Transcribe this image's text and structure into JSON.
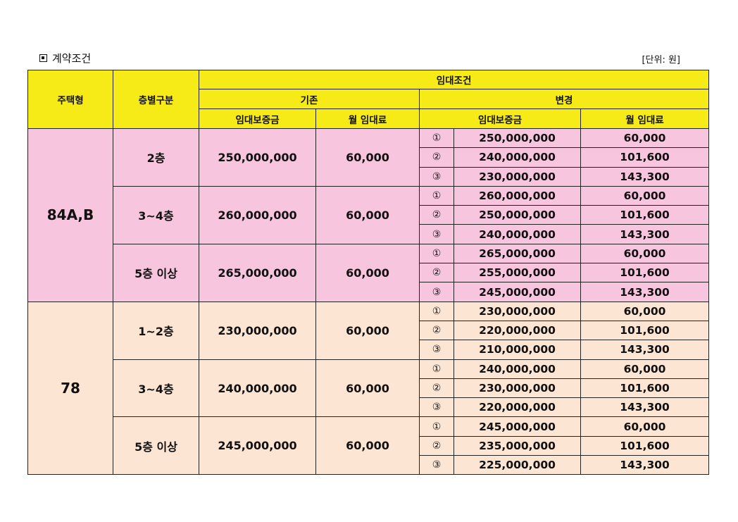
{
  "title": "계약조건",
  "unit": "[단위: 원]",
  "headers": {
    "house_type": "주택형",
    "floor_class": "층별구분",
    "lease_terms": "임대조건",
    "existing": "기존",
    "changed": "변경",
    "deposit": "임대보증금",
    "monthly_rent": "월 임대료"
  },
  "groups": [
    {
      "type": "84A,B",
      "color": "#f8c5de",
      "floors": [
        {
          "floor": "2층",
          "deposit": "250,000,000",
          "rent": "60,000",
          "options": [
            {
              "no": "①",
              "deposit": "250,000,000",
              "rent": "60,000"
            },
            {
              "no": "②",
              "deposit": "240,000,000",
              "rent": "101,600"
            },
            {
              "no": "③",
              "deposit": "230,000,000",
              "rent": "143,300"
            }
          ]
        },
        {
          "floor": "3~4층",
          "deposit": "260,000,000",
          "rent": "60,000",
          "options": [
            {
              "no": "①",
              "deposit": "260,000,000",
              "rent": "60,000"
            },
            {
              "no": "②",
              "deposit": "250,000,000",
              "rent": "101,600"
            },
            {
              "no": "③",
              "deposit": "240,000,000",
              "rent": "143,300"
            }
          ]
        },
        {
          "floor": "5층 이상",
          "deposit": "265,000,000",
          "rent": "60,000",
          "options": [
            {
              "no": "①",
              "deposit": "265,000,000",
              "rent": "60,000"
            },
            {
              "no": "②",
              "deposit": "255,000,000",
              "rent": "101,600"
            },
            {
              "no": "③",
              "deposit": "245,000,000",
              "rent": "143,300"
            }
          ]
        }
      ]
    },
    {
      "type": "78",
      "color": "#fde5d4",
      "floors": [
        {
          "floor": "1~2층",
          "deposit": "230,000,000",
          "rent": "60,000",
          "options": [
            {
              "no": "①",
              "deposit": "230,000,000",
              "rent": "60,000"
            },
            {
              "no": "②",
              "deposit": "220,000,000",
              "rent": "101,600"
            },
            {
              "no": "③",
              "deposit": "210,000,000",
              "rent": "143,300"
            }
          ]
        },
        {
          "floor": "3~4층",
          "deposit": "240,000,000",
          "rent": "60,000",
          "options": [
            {
              "no": "①",
              "deposit": "240,000,000",
              "rent": "60,000"
            },
            {
              "no": "②",
              "deposit": "230,000,000",
              "rent": "101,600"
            },
            {
              "no": "③",
              "deposit": "220,000,000",
              "rent": "143,300"
            }
          ]
        },
        {
          "floor": "5층 이상",
          "deposit": "245,000,000",
          "rent": "60,000",
          "options": [
            {
              "no": "①",
              "deposit": "245,000,000",
              "rent": "60,000"
            },
            {
              "no": "②",
              "deposit": "235,000,000",
              "rent": "101,600"
            },
            {
              "no": "③",
              "deposit": "225,000,000",
              "rent": "143,300"
            }
          ]
        }
      ]
    }
  ]
}
